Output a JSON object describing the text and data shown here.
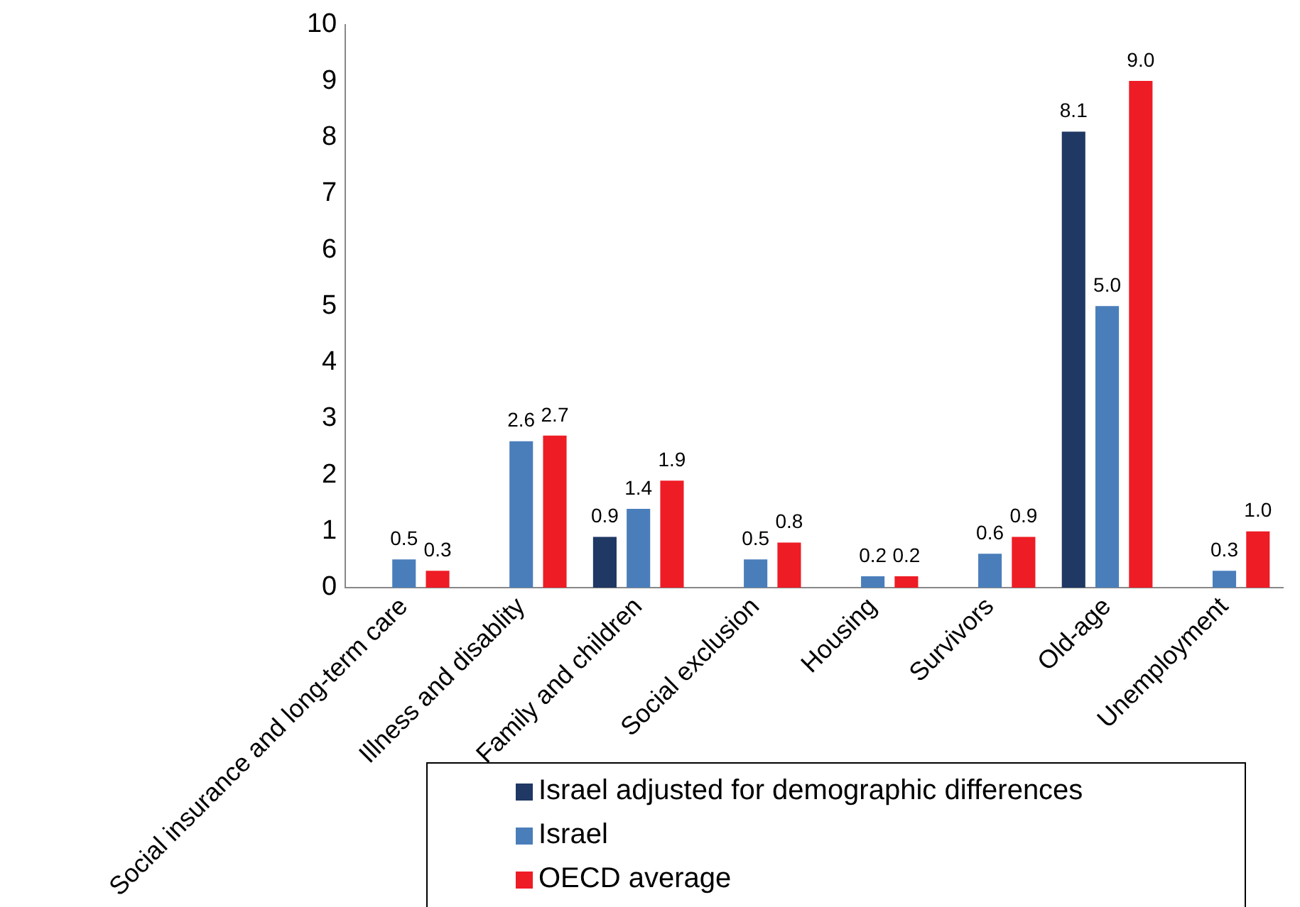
{
  "chart_data": {
    "type": "bar",
    "categories": [
      "Social insurance and long-term care",
      "Illness and disablity",
      "Family and children",
      "Social exclusion",
      "Housing",
      "Survivors",
      "Old-age",
      "Unemployment"
    ],
    "series": [
      {
        "name": "Israel adjusted for demographic differences",
        "color": "#1f3864",
        "values": [
          null,
          null,
          0.9,
          null,
          null,
          null,
          8.1,
          null
        ],
        "value_labels": [
          null,
          null,
          "0.9",
          null,
          null,
          null,
          "8.1",
          null
        ]
      },
      {
        "name": "Israel",
        "color": "#4a7ebb",
        "values": [
          0.5,
          2.6,
          1.4,
          0.5,
          0.2,
          0.6,
          5.0,
          0.3
        ],
        "value_labels": [
          "0.5",
          "2.6",
          "1.4",
          "0.5",
          "0.2",
          "0.6",
          "5.0",
          "0.3"
        ]
      },
      {
        "name": "OECD average",
        "color": "#ee1c25",
        "values": [
          0.3,
          2.7,
          1.9,
          0.8,
          0.2,
          0.9,
          9.0,
          1.0
        ],
        "value_labels": [
          "0.3",
          "2.7",
          "1.9",
          "0.8",
          "0.2",
          "0.9",
          "9.0",
          "1.0"
        ]
      }
    ],
    "ylim": [
      0,
      10
    ],
    "yticks": [
      0,
      1,
      2,
      3,
      4,
      5,
      6,
      7,
      8,
      9,
      10
    ],
    "grid": false,
    "legend": "bottom"
  }
}
